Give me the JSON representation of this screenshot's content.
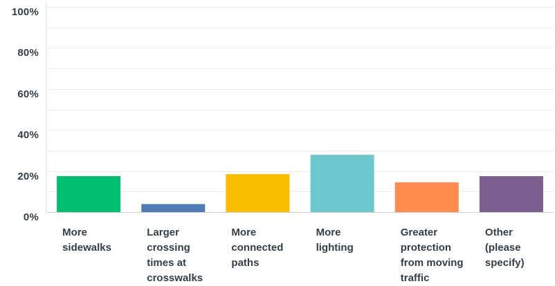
{
  "chart_data": {
    "type": "bar",
    "categories": [
      "More\nsidewalks",
      "Larger\ncrossing\ntimes at\ncrosswalks",
      "More\nconnected\npaths",
      "More\nlighting",
      "Greater\nprotection\nfrom moving\ntraffic",
      "Other\n(please\nspecify)"
    ],
    "values": [
      17.5,
      3.9,
      18.5,
      27.9,
      14.5,
      17.5
    ],
    "bar_colors": [
      "#00bf6f",
      "#507cb6",
      "#f9be00",
      "#6bc8cd",
      "#ff8b4f",
      "#7d5e90"
    ],
    "ylim": [
      0,
      100
    ],
    "yticks": [
      "0%",
      "20%",
      "40%",
      "60%",
      "80%",
      "100%"
    ],
    "ytick_values": [
      0,
      20,
      40,
      60,
      80,
      100
    ],
    "grid": true,
    "title": "",
    "xlabel": "",
    "ylabel": ""
  }
}
